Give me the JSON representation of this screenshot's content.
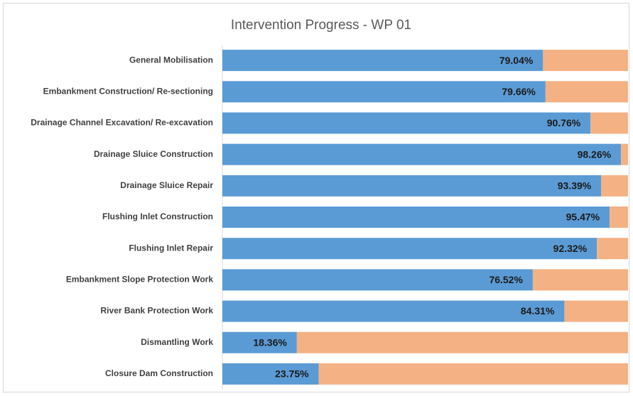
{
  "chart_data": {
    "type": "stacked-barh",
    "title": "Intervention Progress - WP 01",
    "categories": [
      "General Mobilisation",
      "Embankment Construction/ Re-sectioning",
      "Drainage Channel Excavation/ Re-excavation",
      "Drainage Sluice Construction",
      "Drainage Sluice Repair",
      "Flushing Inlet Construction",
      "Flushing Inlet Repair",
      "Embankment Slope Protection Work",
      "River Bank Protection Work",
      "Dismantling Work",
      "Closure Dam Construction"
    ],
    "series": [
      {
        "color": "#5b9bd5",
        "values": [
          79.04,
          79.66,
          90.76,
          98.26,
          93.39,
          95.47,
          92.32,
          76.52,
          84.31,
          18.36,
          23.75
        ],
        "value_labels": [
          "79.04%",
          "79.66%",
          "90.76%",
          "98.26%",
          "93.39%",
          "95.47%",
          "92.32%",
          "76.52%",
          "84.31%",
          "18.36%",
          "23.75%"
        ]
      },
      {
        "color": "#f4b183",
        "values": [
          20.96,
          20.34,
          9.24,
          1.74,
          6.61,
          4.53,
          7.68,
          23.48,
          15.69,
          81.64,
          76.25
        ]
      }
    ],
    "xlim": [
      0,
      100
    ]
  }
}
